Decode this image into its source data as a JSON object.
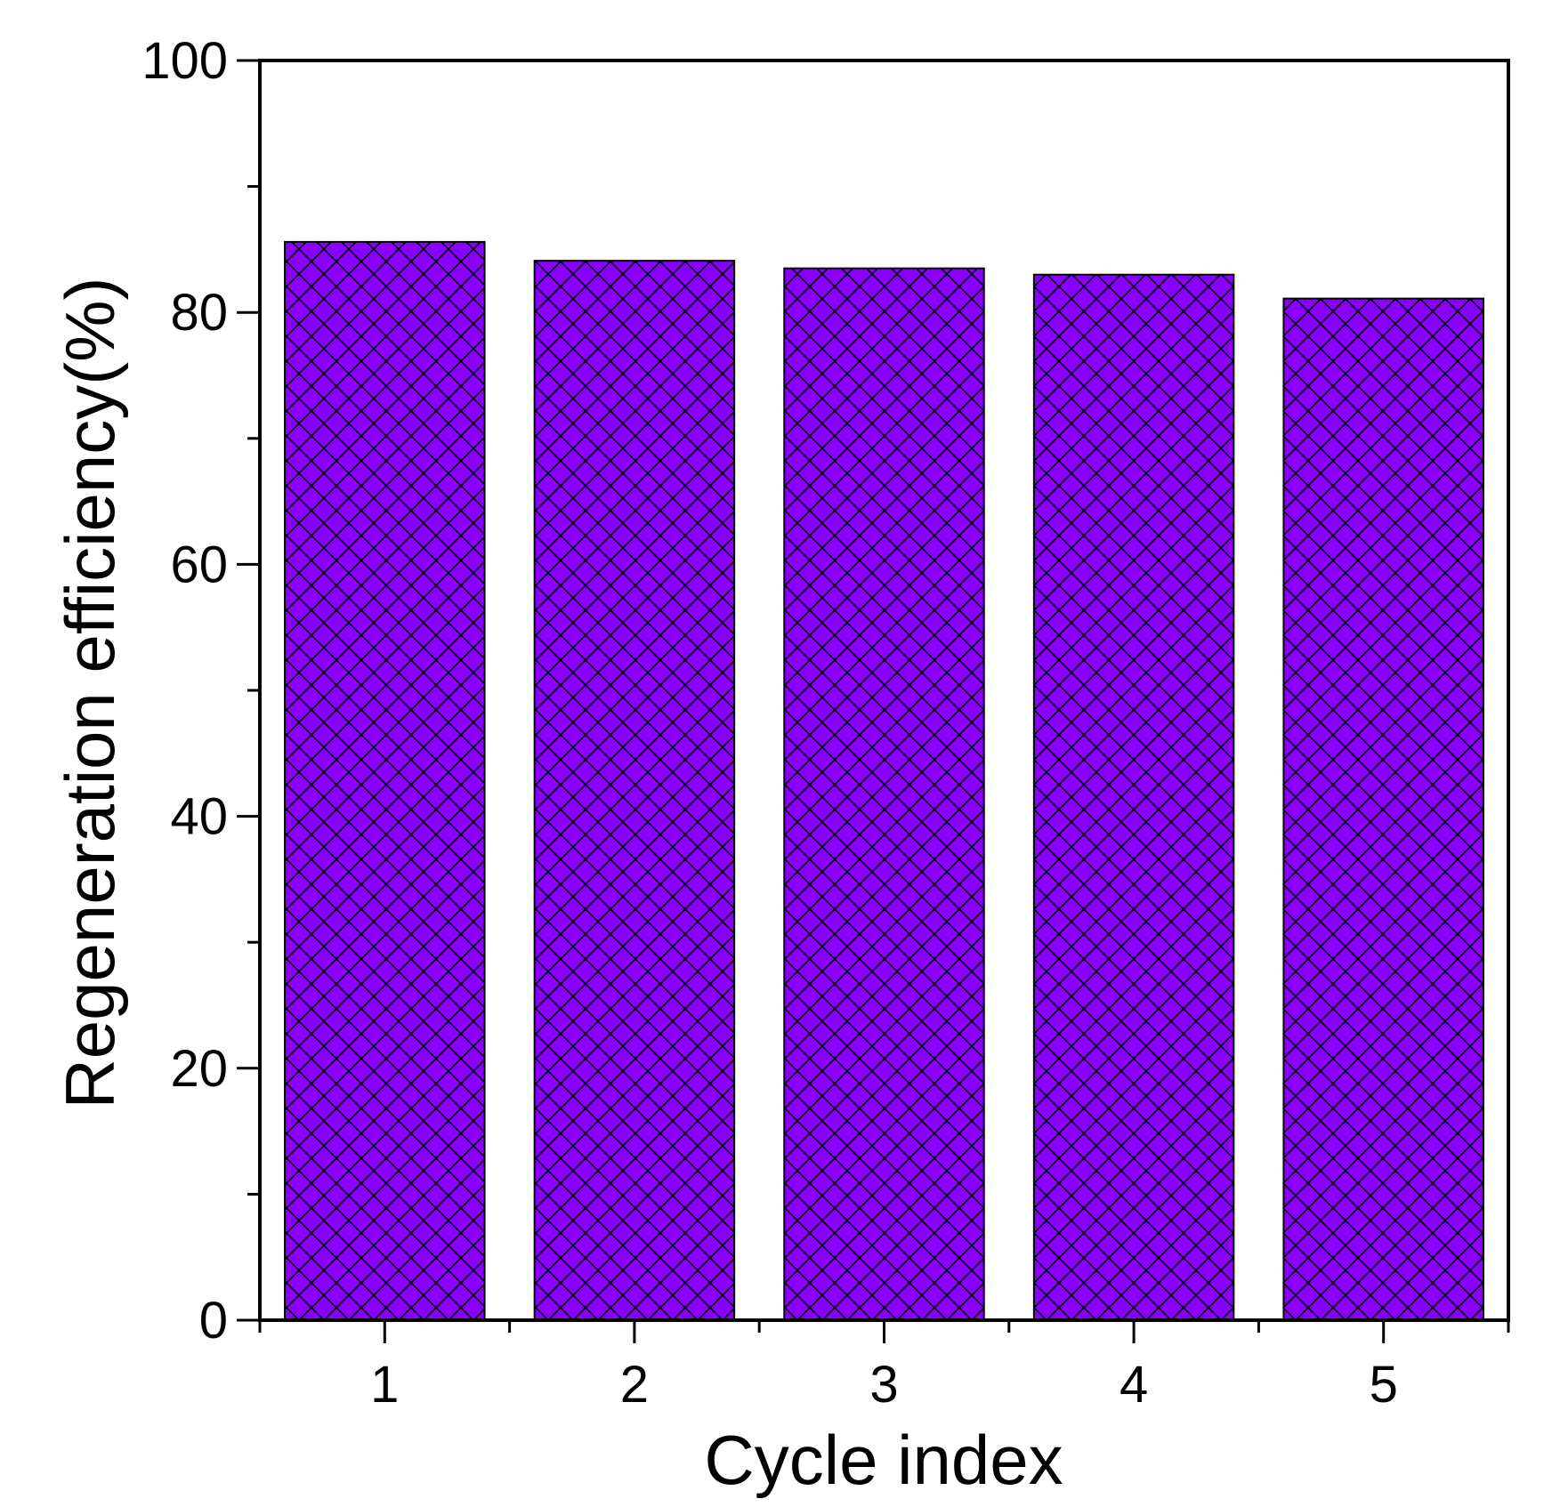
{
  "chart_data": {
    "type": "bar",
    "categories": [
      "1",
      "2",
      "3",
      "4",
      "5"
    ],
    "values": [
      85.6,
      84.1,
      83.5,
      83.0,
      81.1
    ],
    "title": "",
    "xlabel": "Cycle index",
    "ylabel": "Regeneration efficiency(%)",
    "ylim": [
      0,
      100
    ],
    "yticks": [
      "0",
      "20",
      "40",
      "60",
      "80",
      "100"
    ],
    "grid": false,
    "legend": "none",
    "colors": {
      "bar_fill": "#8a00ff",
      "hatch": "#000000",
      "axis": "#000000"
    },
    "bar_pattern": "crosshatch"
  }
}
